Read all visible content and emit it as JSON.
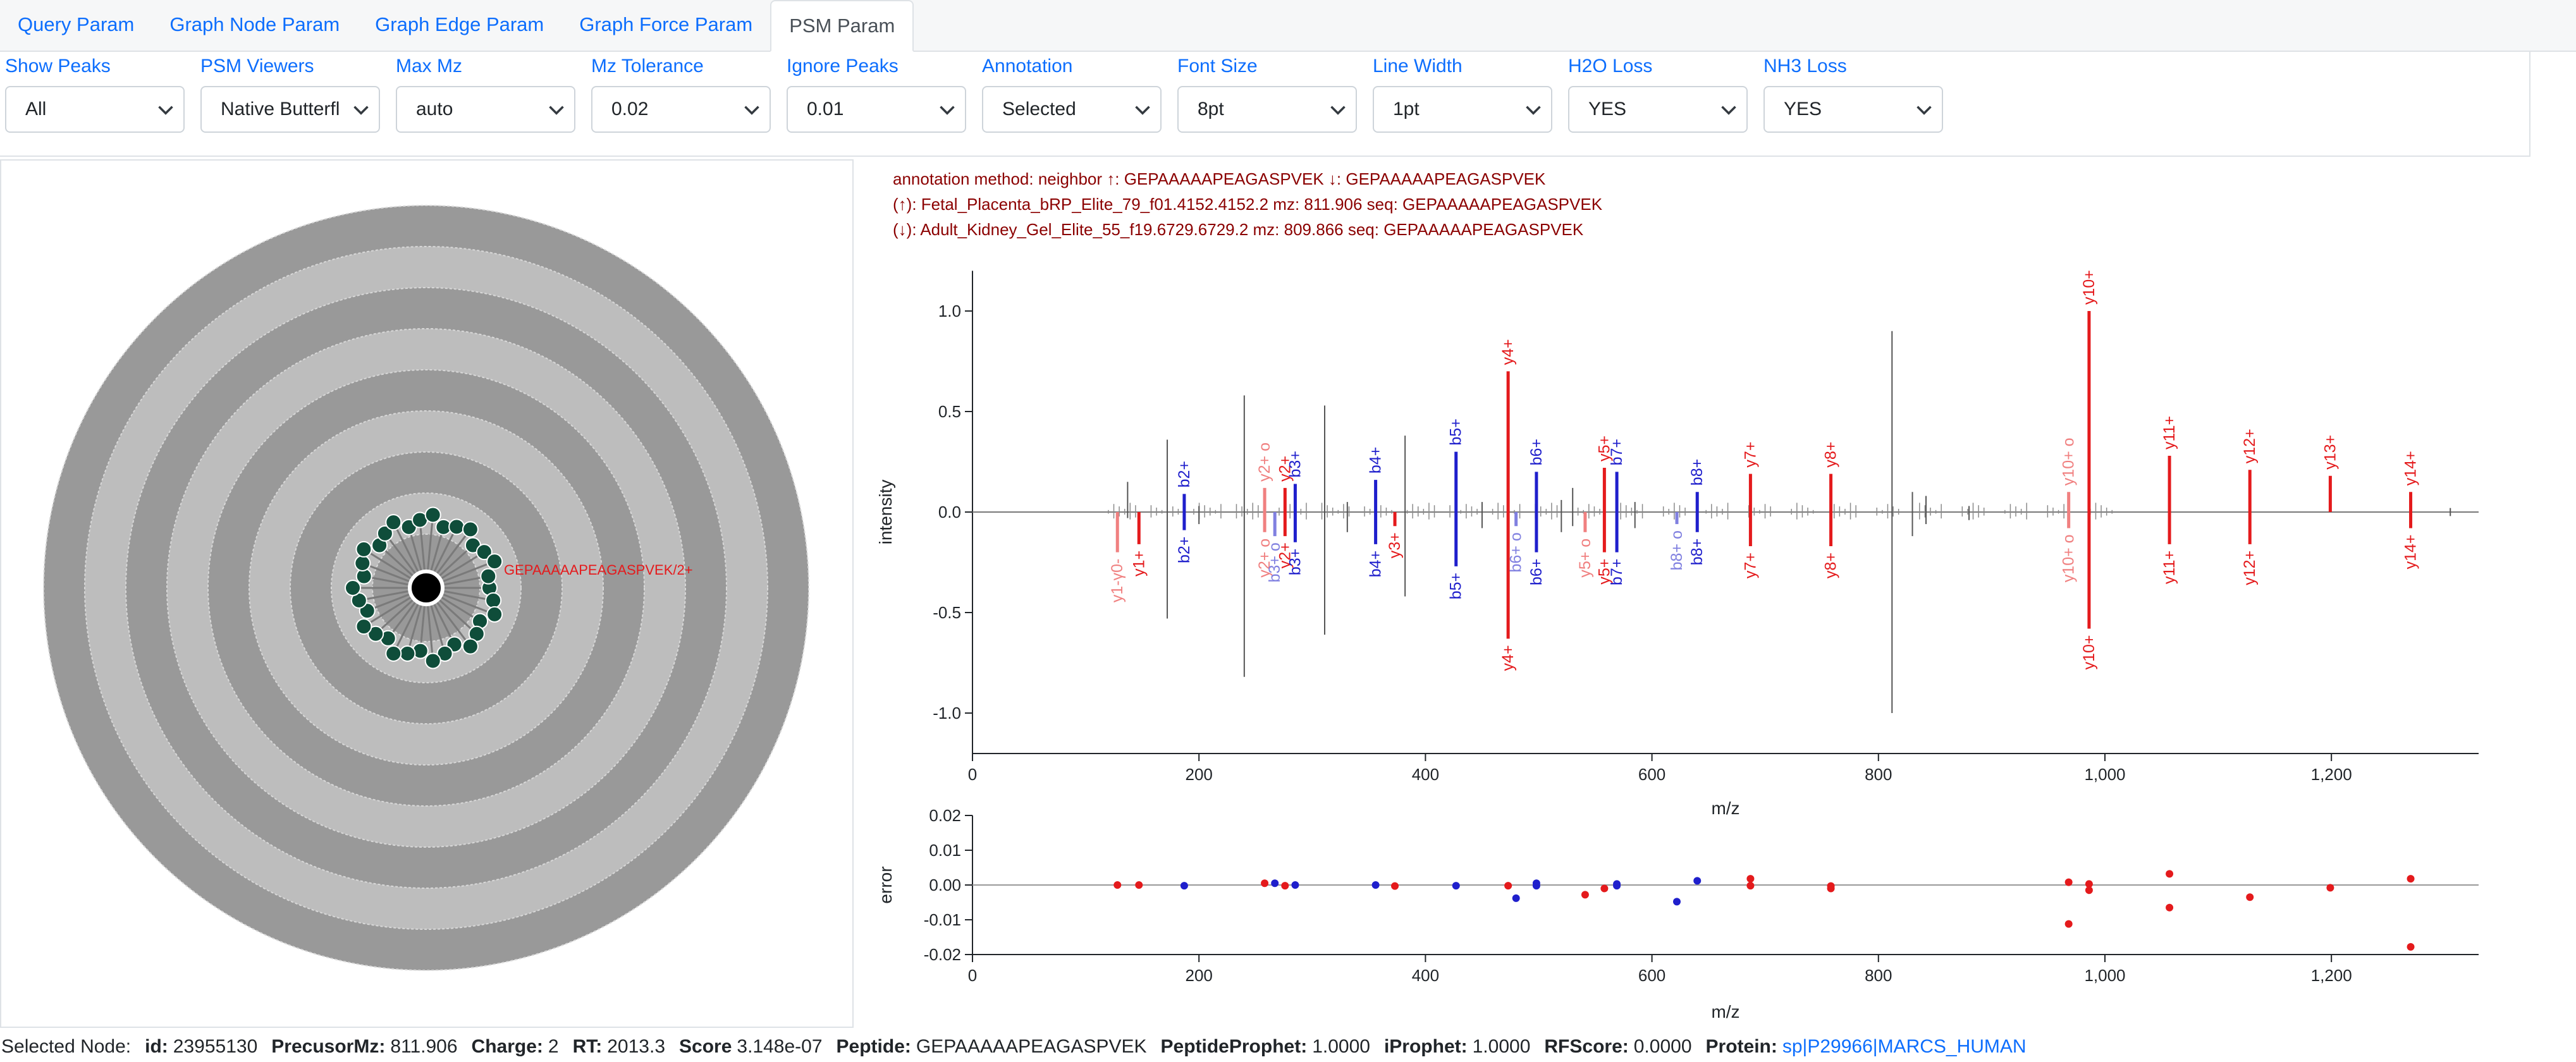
{
  "tabs": [
    {
      "label": "Query Param",
      "active": false
    },
    {
      "label": "Graph Node Param",
      "active": false
    },
    {
      "label": "Graph Edge Param",
      "active": false
    },
    {
      "label": "Graph Force Param",
      "active": false
    },
    {
      "label": "PSM Param",
      "active": true
    }
  ],
  "params": [
    {
      "label": "Show Peaks",
      "value": "All"
    },
    {
      "label": "PSM Viewers",
      "value": "Native Butterfl"
    },
    {
      "label": "Max Mz",
      "value": "auto"
    },
    {
      "label": "Mz Tolerance",
      "value": "0.02"
    },
    {
      "label": "Ignore Peaks",
      "value": "0.01"
    },
    {
      "label": "Annotation",
      "value": "Selected"
    },
    {
      "label": "Font Size",
      "value": "8pt"
    },
    {
      "label": "Line Width",
      "value": "1pt"
    },
    {
      "label": "H2O Loss",
      "value": "YES"
    },
    {
      "label": "NH3 Loss",
      "value": "YES"
    }
  ],
  "graph": {
    "node_label": "GEPAAAAAPEAGASPVEK/2+",
    "ring_colors": [
      "#999999",
      "#bdbdbd"
    ],
    "node_color": "#0f4d3a",
    "center_color": "#000000"
  },
  "annotation": {
    "line1": "annotation method: neighbor ↑: GEPAAAAAPEAGASPVEK ↓: GEPAAAAAPEAGASPVEK",
    "line2": "(↑): Fetal_Placenta_bRP_Elite_79_f01.4152.4152.2 mz: 811.906 seq: GEPAAAAAPEAGASPVEK",
    "line3": "(↓): Adult_Kidney_Gel_Elite_55_f19.6729.6729.2 mz: 809.866 seq: GEPAAAAAPEAGASPVEK"
  },
  "status": {
    "prefix": "Selected Node:",
    "id_label": "id:",
    "id": "23955130",
    "mz_label": "PrecusorMz:",
    "mz": "811.906",
    "charge_label": "Charge:",
    "charge": "2",
    "rt_label": "RT:",
    "rt": "2013.3",
    "score_label": "Score",
    "score": "3.148e-07",
    "peptide_label": "Peptide:",
    "peptide": "GEPAAAAAPEAGASPVEK",
    "pp_label": "PeptideProphet:",
    "pp": "1.0000",
    "ip_label": "iProphet:",
    "ip": "1.0000",
    "rf_label": "RFScore:",
    "rf": "0.0000",
    "protein_label": "Protein:",
    "protein": "sp|P29966|MARCS_HUMAN"
  },
  "chart_data": [
    {
      "type": "bar",
      "xlabel": "m/z",
      "ylabel": "intensity",
      "xlim": [
        0,
        1330
      ],
      "ylim": [
        -1.2,
        1.2
      ],
      "xticks": [
        "0",
        "200",
        "400",
        "600",
        "800",
        "1,000",
        "1,200"
      ],
      "yticks": [
        "1.0",
        "0.5",
        "0.0",
        "-0.5",
        "-1.0"
      ],
      "colors": {
        "y": "#e41a1c",
        "b": "#1f1fcc",
        "y_loss": "#f08080",
        "b_loss": "#8080e0",
        "unannotated": "#555555"
      },
      "annotated_peaks": [
        {
          "label": "y1-γ0-",
          "mz": 128,
          "top": 0,
          "bottom": -0.2,
          "kind": "y_loss"
        },
        {
          "label": "y1+",
          "mz": 147,
          "top": 0,
          "bottom": -0.16,
          "kind": "y"
        },
        {
          "label": "b2+",
          "mz": 187,
          "top": 0.09,
          "bottom": -0.09,
          "kind": "b"
        },
        {
          "label": "y2+ o",
          "mz": 258,
          "top": 0.12,
          "bottom": 0,
          "kind": "y_loss"
        },
        {
          "label": "y2+ o",
          "mz": 258,
          "top": 0,
          "bottom": -0.1,
          "kind": "y_loss"
        },
        {
          "label": "b3+ o",
          "mz": 267,
          "top": 0,
          "bottom": -0.12,
          "kind": "b_loss"
        },
        {
          "label": "y2+",
          "mz": 276,
          "top": 0.12,
          "bottom": -0.12,
          "kind": "y"
        },
        {
          "label": "b3+",
          "mz": 285,
          "top": 0.14,
          "bottom": -0.15,
          "kind": "b"
        },
        {
          "label": "b4+",
          "mz": 356,
          "top": 0.16,
          "bottom": -0.16,
          "kind": "b"
        },
        {
          "label": "y3+",
          "mz": 373,
          "top": 0,
          "bottom": -0.07,
          "kind": "y"
        },
        {
          "label": "b5+",
          "mz": 427,
          "top": 0.3,
          "bottom": -0.27,
          "kind": "b"
        },
        {
          "label": "y4+",
          "mz": 473,
          "top": 0.7,
          "bottom": -0.63,
          "kind": "y"
        },
        {
          "label": "b6+ o",
          "mz": 480,
          "top": 0,
          "bottom": -0.07,
          "kind": "b_loss"
        },
        {
          "label": "b6+",
          "mz": 498,
          "top": 0.2,
          "bottom": -0.2,
          "kind": "b"
        },
        {
          "label": "y5+ o",
          "mz": 541,
          "top": 0,
          "bottom": -0.1,
          "kind": "y_loss"
        },
        {
          "label": "y5+",
          "mz": 558,
          "top": 0.22,
          "bottom": -0.2,
          "kind": "y"
        },
        {
          "label": "b7+",
          "mz": 569,
          "top": 0.2,
          "bottom": -0.2,
          "kind": "b"
        },
        {
          "label": "b8+ o",
          "mz": 622,
          "top": 0,
          "bottom": -0.06,
          "kind": "b_loss"
        },
        {
          "label": "b8+",
          "mz": 640,
          "top": 0.1,
          "bottom": -0.1,
          "kind": "b"
        },
        {
          "label": "y7+",
          "mz": 687,
          "top": 0.19,
          "bottom": -0.17,
          "kind": "y"
        },
        {
          "label": "y8+",
          "mz": 758,
          "top": 0.19,
          "bottom": -0.17,
          "kind": "y"
        },
        {
          "label": "y10+ o",
          "mz": 968,
          "top": 0.1,
          "bottom": -0.08,
          "kind": "y_loss"
        },
        {
          "label": "y10+",
          "mz": 986,
          "top": 1.0,
          "bottom": -0.58,
          "kind": "y"
        },
        {
          "label": "y11+",
          "mz": 1057,
          "top": 0.28,
          "bottom": -0.16,
          "kind": "y"
        },
        {
          "label": "y12+",
          "mz": 1128,
          "top": 0.21,
          "bottom": -0.16,
          "kind": "y"
        },
        {
          "label": "y13+",
          "mz": 1199,
          "top": 0.18,
          "bottom": 0,
          "kind": "y"
        },
        {
          "label": "y14+",
          "mz": 1270,
          "top": 0.1,
          "bottom": -0.08,
          "kind": "y"
        }
      ],
      "unannotated_peaks": [
        {
          "mz": 137,
          "top": 0.15,
          "bottom": -0.03
        },
        {
          "mz": 172,
          "top": 0.36,
          "bottom": -0.53
        },
        {
          "mz": 200,
          "top": 0.03,
          "bottom": -0.06
        },
        {
          "mz": 240,
          "top": 0.58,
          "bottom": -0.82
        },
        {
          "mz": 311,
          "top": 0.53,
          "bottom": -0.61
        },
        {
          "mz": 331,
          "top": 0.05,
          "bottom": -0.1
        },
        {
          "mz": 382,
          "top": 0.38,
          "bottom": -0.42
        },
        {
          "mz": 450,
          "top": 0.05,
          "bottom": -0.08
        },
        {
          "mz": 520,
          "top": 0.06,
          "bottom": -0.1
        },
        {
          "mz": 530,
          "top": 0.12,
          "bottom": -0.07
        },
        {
          "mz": 585,
          "top": 0.05,
          "bottom": -0.08
        },
        {
          "mz": 812,
          "top": 0.9,
          "bottom": -1.0
        },
        {
          "mz": 830,
          "top": 0.1,
          "bottom": -0.12
        },
        {
          "mz": 842,
          "top": 0.08,
          "bottom": -0.06
        },
        {
          "mz": 880,
          "top": 0.03,
          "bottom": -0.04
        },
        {
          "mz": 1305,
          "top": 0.02,
          "bottom": -0.02
        }
      ]
    },
    {
      "type": "scatter",
      "xlabel": "m/z",
      "ylabel": "error",
      "xlim": [
        0,
        1330
      ],
      "ylim": [
        -0.02,
        0.02
      ],
      "xticks": [
        "0",
        "200",
        "400",
        "600",
        "800",
        "1,000",
        "1,200"
      ],
      "yticks": [
        "0.02",
        "0.01",
        "0.00",
        "-0.01",
        "-0.02"
      ],
      "series": [
        {
          "color": "#e41a1c",
          "points": [
            [
              128,
              0
            ],
            [
              147,
              0
            ],
            [
              258,
              0.0005
            ],
            [
              276,
              -0.0002
            ],
            [
              373,
              -0.0003
            ],
            [
              473,
              -0.0002
            ],
            [
              541,
              -0.0028
            ],
            [
              558,
              -0.001
            ],
            [
              687,
              0.0018
            ],
            [
              687,
              -0.0002
            ],
            [
              758,
              -0.001
            ],
            [
              758,
              -0.0003
            ],
            [
              968,
              0.0008
            ],
            [
              968,
              -0.0112
            ],
            [
              986,
              0.0003
            ],
            [
              986,
              -0.0015
            ],
            [
              1057,
              0.0032
            ],
            [
              1057,
              -0.0065
            ],
            [
              1128,
              -0.0035
            ],
            [
              1199,
              -0.0008
            ],
            [
              1270,
              0.0018
            ],
            [
              1270,
              -0.0178
            ]
          ]
        },
        {
          "color": "#1f1fcc",
          "points": [
            [
              187,
              -0.0002
            ],
            [
              267,
              0.0005
            ],
            [
              285,
              0
            ],
            [
              356,
              0
            ],
            [
              427,
              -0.0002
            ],
            [
              480,
              -0.0038
            ],
            [
              498,
              0.0005
            ],
            [
              498,
              -0.0002
            ],
            [
              569,
              0.0003
            ],
            [
              569,
              -0.0002
            ],
            [
              622,
              -0.0048
            ],
            [
              640,
              0.0012
            ]
          ]
        }
      ]
    }
  ]
}
